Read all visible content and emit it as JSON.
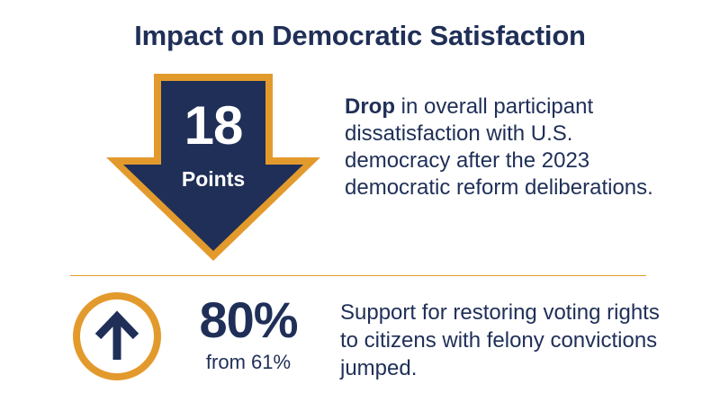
{
  "title": "Impact on Democratic Satisfaction",
  "colors": {
    "navy": "#1f2f57",
    "orange": "#e39a2d",
    "background": "#ffffff"
  },
  "stat_drop": {
    "icon": "down-arrow-icon",
    "number": "18",
    "unit": "Points",
    "desc_bold": "Drop",
    "desc_rest": " in overall participant dissatisfaction with U.S. democracy after the 2023 democratic reform deliberations."
  },
  "stat_support": {
    "icon": "up-arrow-circle-icon",
    "number": "80%",
    "sub": "from 61%",
    "desc": "Support for restoring voting rights to citizens with felony convictions jumped."
  }
}
